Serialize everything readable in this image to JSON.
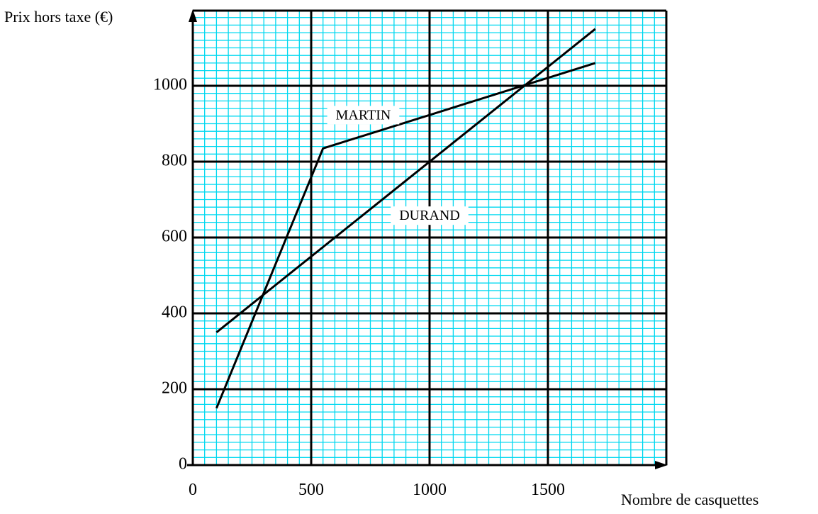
{
  "chart_data": {
    "type": "line",
    "title": "",
    "xlabel": "Nombre de casquettes",
    "ylabel": "Prix hors taxe (€)",
    "xlim": [
      0,
      2000
    ],
    "ylim": [
      0,
      1200
    ],
    "x_ticks": [
      0,
      500,
      1000,
      1500
    ],
    "x_tick_labels": [
      "0",
      "500",
      "1000",
      "1500"
    ],
    "y_ticks": [
      0,
      200,
      400,
      600,
      800,
      1000
    ],
    "y_tick_labels": [
      "0",
      "200",
      "400",
      "600",
      "800",
      "1000"
    ],
    "grid": true,
    "minor_grid_step": {
      "x": 50,
      "y": 20
    },
    "major_grid_step": {
      "x": 500,
      "y": 200
    },
    "legend": "none",
    "series": [
      {
        "name": "MARTIN",
        "x": [
          100,
          550,
          1700
        ],
        "y": [
          150,
          835,
          1060
        ]
      },
      {
        "name": "DURAND",
        "x": [
          100,
          1700
        ],
        "y": [
          350,
          1150
        ]
      }
    ],
    "series_label_positions": [
      {
        "series": "MARTIN",
        "x": 720,
        "y": 920
      },
      {
        "series": "DURAND",
        "x": 1000,
        "y": 655
      }
    ],
    "colors": {
      "minor_grid": "#00d8f0",
      "major_grid": "#000000",
      "line": "#000000",
      "background": "#ffffff"
    }
  }
}
